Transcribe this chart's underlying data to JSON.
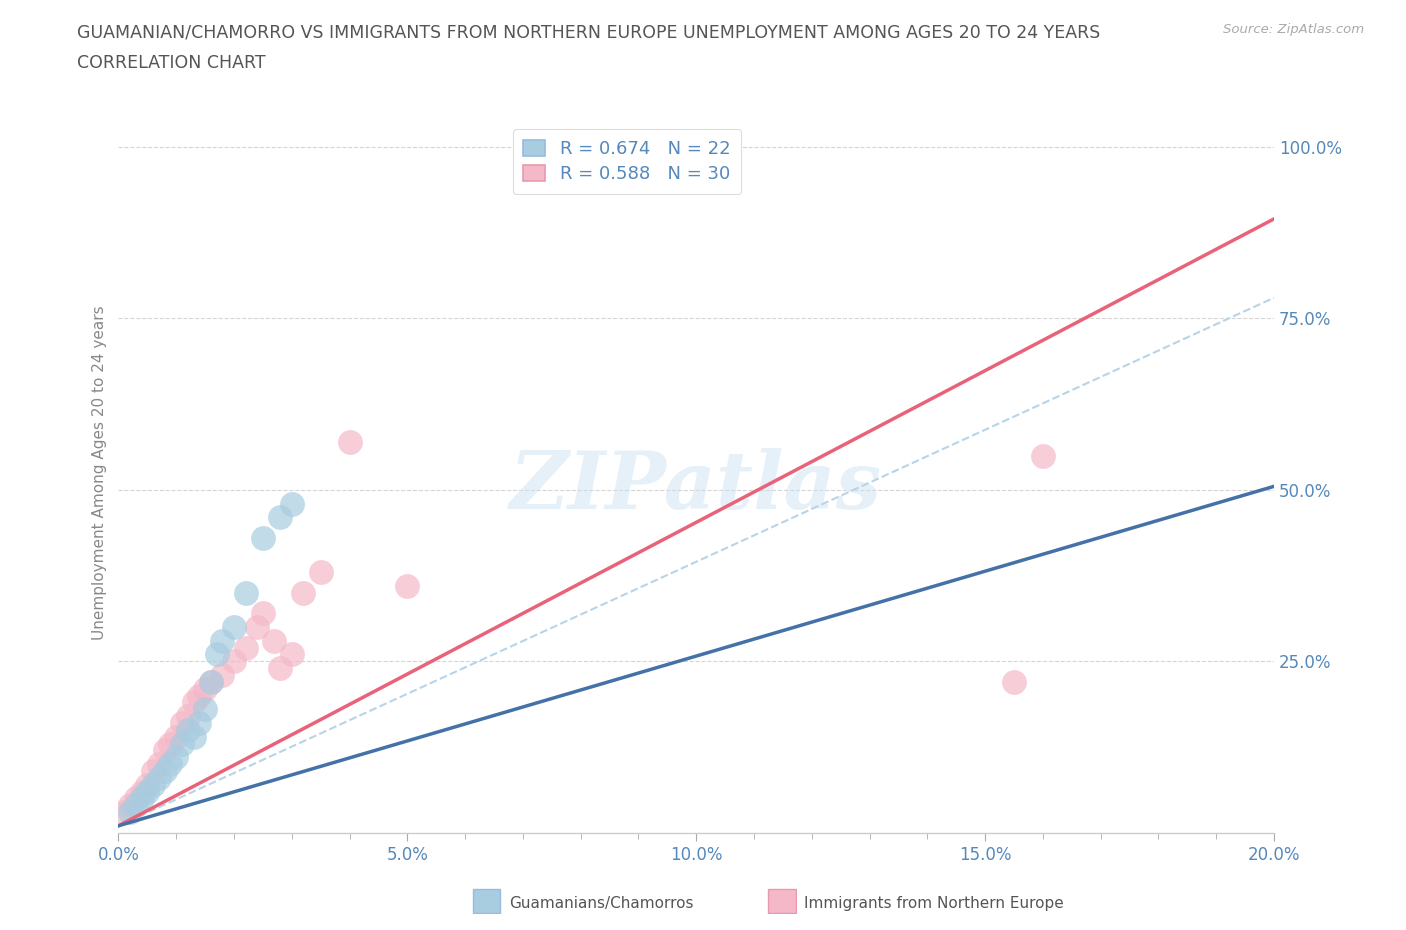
{
  "title_line1": "GUAMANIAN/CHAMORRO VS IMMIGRANTS FROM NORTHERN EUROPE UNEMPLOYMENT AMONG AGES 20 TO 24 YEARS",
  "title_line2": "CORRELATION CHART",
  "source_text": "Source: ZipAtlas.com",
  "ylabel": "Unemployment Among Ages 20 to 24 years",
  "xlim": [
    0.0,
    0.2
  ],
  "ylim": [
    0.0,
    1.05
  ],
  "xtick_positions": [
    0.0,
    0.05,
    0.1,
    0.15,
    0.2
  ],
  "xtick_labels": [
    "0.0%",
    "5.0%",
    "10.0%",
    "15.0%",
    "20.0%"
  ],
  "ytick_positions": [
    0.25,
    0.5,
    0.75,
    1.0
  ],
  "ytick_labels": [
    "25.0%",
    "50.0%",
    "75.0%",
    "100.0%"
  ],
  "watermark": "ZIPatlas",
  "legend_r1": "R = 0.674",
  "legend_n1": "N = 22",
  "legend_r2": "R = 0.588",
  "legend_n2": "N = 30",
  "blue_color": "#a8cce0",
  "pink_color": "#f4b8c8",
  "blue_line_color": "#4472a8",
  "pink_line_color": "#e8637a",
  "dashed_line_color": "#b8d4e8",
  "blue_scatter_x": [
    0.002,
    0.003,
    0.004,
    0.005,
    0.006,
    0.007,
    0.008,
    0.009,
    0.01,
    0.011,
    0.012,
    0.013,
    0.014,
    0.015,
    0.016,
    0.017,
    0.018,
    0.02,
    0.022,
    0.025,
    0.028,
    0.03
  ],
  "blue_scatter_y": [
    0.03,
    0.04,
    0.05,
    0.06,
    0.07,
    0.08,
    0.09,
    0.1,
    0.11,
    0.13,
    0.15,
    0.14,
    0.16,
    0.18,
    0.22,
    0.26,
    0.28,
    0.3,
    0.35,
    0.43,
    0.46,
    0.48
  ],
  "pink_scatter_x": [
    0.001,
    0.002,
    0.003,
    0.004,
    0.005,
    0.006,
    0.007,
    0.008,
    0.009,
    0.01,
    0.011,
    0.012,
    0.013,
    0.014,
    0.015,
    0.016,
    0.018,
    0.02,
    0.022,
    0.024,
    0.025,
    0.027,
    0.028,
    0.03,
    0.032,
    0.035,
    0.04,
    0.05,
    0.155,
    0.16
  ],
  "pink_scatter_y": [
    0.03,
    0.04,
    0.05,
    0.06,
    0.07,
    0.09,
    0.1,
    0.12,
    0.13,
    0.14,
    0.16,
    0.17,
    0.19,
    0.2,
    0.21,
    0.22,
    0.23,
    0.25,
    0.27,
    0.3,
    0.32,
    0.28,
    0.24,
    0.26,
    0.35,
    0.38,
    0.57,
    0.36,
    0.22,
    0.55
  ],
  "blue_line_x": [
    0.0,
    0.2
  ],
  "blue_line_y": [
    0.01,
    0.505
  ],
  "pink_line_x": [
    0.0,
    0.2
  ],
  "pink_line_y": [
    0.01,
    0.895
  ],
  "dashed_line_x": [
    0.0,
    0.2
  ],
  "dashed_line_y": [
    0.01,
    0.78
  ],
  "background_color": "#ffffff",
  "grid_color": "#cccccc",
  "title_color": "#555555",
  "axis_label_color": "#888888",
  "tick_label_color": "#5588bb",
  "legend_label_color": "#5588bb",
  "source_color": "#aaaaaa"
}
